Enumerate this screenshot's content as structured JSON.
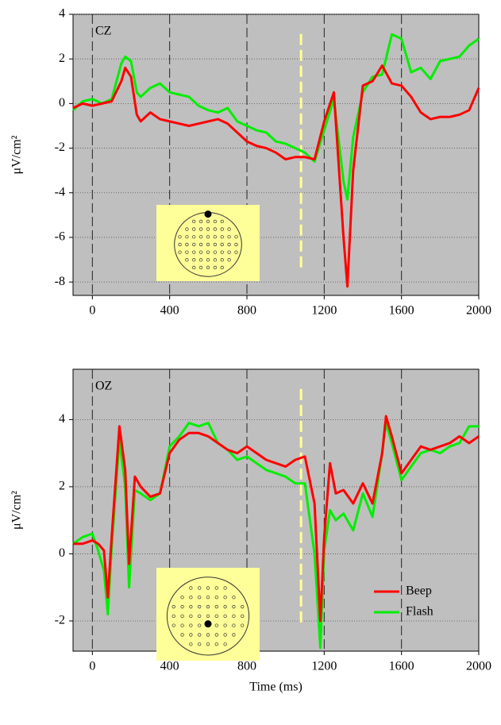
{
  "chart_data": [
    {
      "type": "line",
      "label": "CZ",
      "y_label": "μV/cm²",
      "x": [
        -100,
        -50,
        0,
        50,
        100,
        150,
        170,
        200,
        230,
        250,
        300,
        350,
        400,
        450,
        500,
        550,
        600,
        650,
        700,
        750,
        800,
        850,
        900,
        950,
        1000,
        1050,
        1100,
        1150,
        1200,
        1250,
        1300,
        1320,
        1350,
        1400,
        1450,
        1500,
        1550,
        1600,
        1650,
        1700,
        1750,
        1800,
        1850,
        1900,
        1950,
        2000
      ],
      "series": [
        {
          "color": "#ff0000",
          "values": [
            -0.2,
            0,
            -0.1,
            0,
            0.1,
            1.0,
            1.6,
            1.2,
            -0.5,
            -0.8,
            -0.4,
            -0.7,
            -0.8,
            -0.9,
            -1.0,
            -0.9,
            -0.8,
            -0.7,
            -0.9,
            -1.3,
            -1.7,
            -1.9,
            -2.0,
            -2.2,
            -2.5,
            -2.4,
            -2.4,
            -2.5,
            -0.8,
            0.5,
            -6,
            -8.2,
            -3,
            0.8,
            1.0,
            1.7,
            0.9,
            0.8,
            0.3,
            -0.4,
            -0.7,
            -0.6,
            -0.6,
            -0.5,
            -0.3,
            0.7
          ]
        },
        {
          "color": "#00ee00",
          "values": [
            -0.3,
            0.1,
            0.2,
            0,
            0.2,
            1.8,
            2.1,
            1.9,
            0.5,
            0.3,
            0.7,
            0.9,
            0.5,
            0.4,
            0.3,
            -0.1,
            -0.3,
            -0.4,
            -0.2,
            -0.8,
            -1.0,
            -1.2,
            -1.3,
            -1.7,
            -1.8,
            -2.0,
            -2.2,
            -2.6,
            -1.2,
            0.2,
            -3.5,
            -4.3,
            -1.5,
            0.5,
            1.2,
            1.3,
            3.1,
            2.9,
            1.4,
            1.6,
            1.1,
            1.9,
            2.0,
            2.1,
            2.6,
            2.9
          ]
        }
      ],
      "xlim": [
        -100,
        2000
      ],
      "xticks": [
        0,
        400,
        800,
        1200,
        1600,
        2000
      ],
      "ylim": [
        -8.6,
        4
      ],
      "yticks": [
        4,
        2,
        0,
        -2,
        -4,
        -6,
        -8
      ],
      "grid": true,
      "marker_x": 1080
    },
    {
      "type": "line",
      "label": "OZ",
      "y_label": "μV/cm²",
      "x_label": "Time (ms)",
      "x": [
        -100,
        -50,
        0,
        30,
        60,
        80,
        100,
        140,
        170,
        190,
        220,
        250,
        300,
        350,
        400,
        450,
        500,
        550,
        600,
        650,
        700,
        750,
        800,
        850,
        900,
        950,
        1000,
        1050,
        1100,
        1150,
        1180,
        1200,
        1230,
        1260,
        1300,
        1350,
        1400,
        1450,
        1500,
        1520,
        1550,
        1600,
        1650,
        1700,
        1750,
        1800,
        1850,
        1900,
        1950,
        2000
      ],
      "series": [
        {
          "name": "Beep",
          "color": "#ff0000",
          "values": [
            0.3,
            0.3,
            0.4,
            0.3,
            0.1,
            -1.3,
            0.5,
            3.8,
            2.5,
            -0.3,
            2.3,
            2.0,
            1.7,
            1.8,
            3.0,
            3.4,
            3.6,
            3.6,
            3.5,
            3.3,
            3.1,
            3.0,
            3.2,
            3.0,
            2.8,
            2.7,
            2.6,
            2.8,
            2.9,
            1.5,
            -2.0,
            0.5,
            2.7,
            1.8,
            1.9,
            1.5,
            2.1,
            1.5,
            3.0,
            4.1,
            3.5,
            2.4,
            2.8,
            3.2,
            3.1,
            3.2,
            3.3,
            3.5,
            3.3,
            3.5
          ]
        },
        {
          "name": "Flash",
          "color": "#00ee00",
          "values": [
            0.3,
            0.5,
            0.6,
            0.1,
            -0.5,
            -1.8,
            0.2,
            3.4,
            2.0,
            -1.0,
            1.9,
            1.8,
            1.6,
            1.8,
            3.2,
            3.5,
            3.9,
            3.8,
            3.9,
            3.3,
            3.1,
            2.8,
            2.9,
            2.7,
            2.5,
            2.4,
            2.3,
            2.1,
            2.1,
            0,
            -2.8,
            0.1,
            1.3,
            1.0,
            1.2,
            0.7,
            1.8,
            1.1,
            3.0,
            3.9,
            3.3,
            2.2,
            2.6,
            3.0,
            3.1,
            3.0,
            3.2,
            3.3,
            3.8,
            3.8
          ]
        }
      ],
      "xlim": [
        -100,
        2000
      ],
      "xticks": [
        0,
        400,
        800,
        1200,
        1600,
        2000
      ],
      "ylim": [
        -2.9,
        5.5
      ],
      "yticks": [
        4,
        2,
        0,
        -2
      ],
      "grid": true,
      "marker_x": 1080,
      "legend": "lower right"
    }
  ]
}
